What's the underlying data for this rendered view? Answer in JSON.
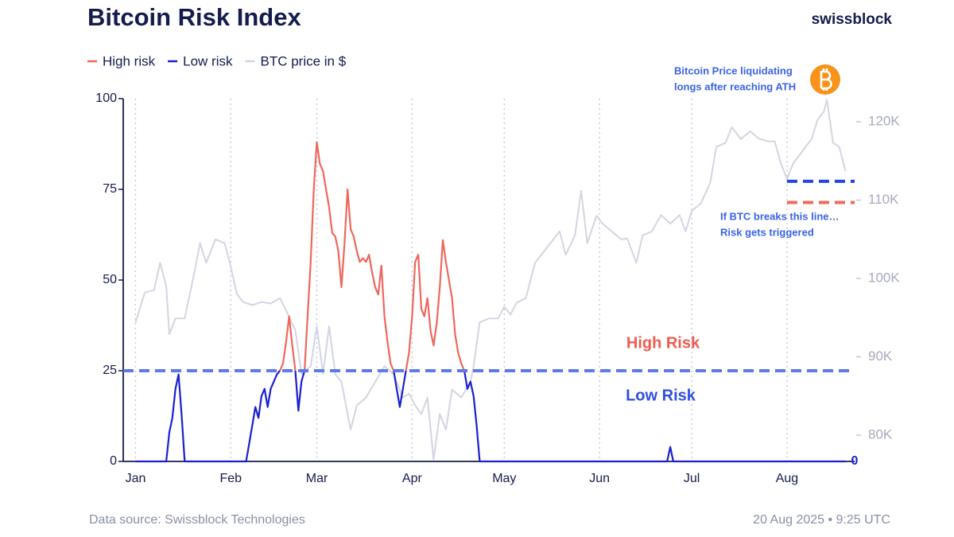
{
  "chart_data": {
    "type": "line",
    "title": "Bitcoin Risk Index",
    "brand": "swissblock",
    "source": "Data source: Swissblock Technologies",
    "timestamp": "20 Aug 2025 • 9:25 UTC",
    "xlim": [
      -4,
      234
    ],
    "xticks": [
      {
        "value": 0,
        "label": "Jan"
      },
      {
        "value": 31,
        "label": "Feb"
      },
      {
        "value": 59,
        "label": "Mar"
      },
      {
        "value": 90,
        "label": "Apr"
      },
      {
        "value": 120,
        "label": "May"
      },
      {
        "value": 151,
        "label": "Jun"
      },
      {
        "value": 181,
        "label": "Jul"
      },
      {
        "value": 212,
        "label": "Aug"
      }
    ],
    "xgrid": true,
    "ylim": [
      0,
      100
    ],
    "yticks": [
      0,
      25,
      50,
      75,
      100
    ],
    "y2lim": [
      76650,
      122950
    ],
    "y2ticks": [
      {
        "value": 80000,
        "label": "80K"
      },
      {
        "value": 90000,
        "label": "90K"
      },
      {
        "value": 100000,
        "label": "100K"
      },
      {
        "value": 110000,
        "label": "110K"
      },
      {
        "value": 120000,
        "label": "120K"
      }
    ],
    "x": [
      0,
      10,
      11,
      12,
      13,
      14,
      15,
      16,
      36,
      37,
      38,
      39,
      40,
      41,
      42,
      43,
      44,
      45,
      46,
      47,
      48,
      49,
      50,
      51,
      52,
      53,
      54,
      55,
      56,
      57,
      58,
      59,
      60,
      61,
      62,
      63,
      64,
      65,
      66,
      67,
      68,
      69,
      70,
      71,
      72,
      73,
      74,
      75,
      76,
      77,
      78,
      79,
      80,
      81,
      82,
      83,
      84,
      85,
      86,
      87,
      88,
      89,
      90,
      91,
      92,
      93,
      94,
      95,
      96,
      97,
      98,
      99,
      100,
      101,
      102,
      103,
      104,
      105,
      106,
      107,
      108,
      109,
      110,
      111,
      112,
      173,
      174,
      175,
      231
    ],
    "series": [
      {
        "name": "High risk",
        "color": "#f0665c",
        "values": [
          null,
          null,
          null,
          null,
          null,
          null,
          null,
          null,
          null,
          null,
          null,
          null,
          null,
          null,
          null,
          null,
          null,
          null,
          null,
          25,
          27,
          33,
          40,
          32,
          25,
          null,
          null,
          25,
          40,
          55,
          75,
          88,
          82,
          80,
          75,
          70,
          63,
          62,
          58,
          48,
          60,
          75,
          64,
          62,
          58,
          55,
          56,
          55,
          57,
          52,
          48,
          46,
          54,
          40,
          33,
          27,
          25,
          null,
          null,
          null,
          25,
          30,
          40,
          55,
          57,
          42,
          40,
          45,
          36,
          32,
          38,
          48,
          61,
          55,
          50,
          45,
          35,
          30,
          27,
          25,
          null,
          null,
          null,
          null,
          null,
          null,
          null,
          null,
          null
        ]
      },
      {
        "name": "Low risk",
        "color": "#1a1fd1",
        "values": [
          0,
          0,
          8,
          12,
          20,
          24,
          13,
          0,
          0,
          5,
          10,
          15,
          12,
          18,
          20,
          15,
          20,
          22,
          24,
          25,
          null,
          null,
          null,
          null,
          25,
          14,
          22,
          25,
          null,
          null,
          null,
          null,
          null,
          null,
          null,
          null,
          null,
          null,
          null,
          null,
          null,
          null,
          null,
          null,
          null,
          null,
          null,
          null,
          null,
          null,
          null,
          null,
          null,
          null,
          null,
          null,
          25,
          20,
          15,
          20,
          25,
          null,
          null,
          null,
          null,
          null,
          null,
          null,
          null,
          null,
          null,
          null,
          null,
          null,
          null,
          null,
          null,
          null,
          null,
          25,
          20,
          22,
          18,
          10,
          0,
          0,
          4,
          0,
          0
        ]
      },
      {
        "name": "BTC price in $",
        "color": "#d3d5e2",
        "axis": "y2",
        "x": [
          0,
          3,
          6,
          8,
          10,
          11,
          13,
          16,
          19,
          21,
          23,
          26,
          29,
          31,
          33,
          35,
          38,
          41,
          44,
          47,
          49,
          52,
          54,
          57,
          59,
          61,
          63,
          65,
          67,
          70,
          72,
          75,
          78,
          81,
          84,
          87,
          89,
          91,
          93,
          95,
          97,
          99,
          101,
          103,
          106,
          109,
          110,
          112,
          115,
          118,
          120,
          122,
          124,
          127,
          130,
          132,
          135,
          138,
          140,
          143,
          145,
          147,
          150,
          152,
          155,
          158,
          160,
          163,
          165,
          168,
          171,
          174,
          177,
          179,
          181,
          184,
          187,
          189,
          192,
          194,
          197,
          200,
          203,
          206,
          208,
          210,
          212,
          214,
          216,
          218,
          220,
          222,
          224,
          225,
          227,
          229,
          231
        ],
        "values": [
          94400,
          98200,
          98500,
          102000,
          99000,
          92900,
          94900,
          94900,
          100500,
          104500,
          102000,
          105000,
          104500,
          101500,
          98000,
          97000,
          96600,
          97000,
          96800,
          97500,
          95900,
          93400,
          87800,
          88800,
          93900,
          87800,
          93900,
          87800,
          86800,
          80700,
          83800,
          84800,
          86800,
          88800,
          87800,
          84800,
          85300,
          83800,
          82700,
          84800,
          76900,
          82700,
          80700,
          85800,
          84800,
          86800,
          88800,
          94400,
          94900,
          94900,
          96400,
          95400,
          96900,
          97500,
          102000,
          103000,
          104500,
          106000,
          103000,
          105500,
          111200,
          104500,
          108000,
          107000,
          106000,
          105000,
          105100,
          102000,
          105500,
          106000,
          108100,
          107000,
          108100,
          106000,
          108600,
          109600,
          112200,
          116800,
          117300,
          119300,
          117800,
          118800,
          117800,
          117500,
          117500,
          114700,
          112700,
          114700,
          115700,
          116800,
          117800,
          120300,
          121300,
          122800,
          117300,
          116800,
          113700
        ]
      }
    ],
    "reference_lines": [
      {
        "axis": "y",
        "value": 25,
        "color": "#5b7be8"
      },
      {
        "axis": "y2",
        "value": 112400,
        "color": "#2346e0",
        "xrange": [
          212,
          234
        ]
      },
      {
        "axis": "y2",
        "value": 109700,
        "color": "#f06a5a",
        "xrange": [
          212,
          234
        ]
      }
    ],
    "annotations": [
      {
        "text": "High Risk",
        "color": "#ef5b4f"
      },
      {
        "text": "Low Risk",
        "color": "#2f4fe0"
      },
      {
        "lines": [
          "Bitcoin Price liquidating",
          "longs after reaching ATH"
        ],
        "color": "#3a63e6"
      },
      {
        "lines": [
          "If BTC breaks this line…",
          "Risk gets triggered"
        ],
        "color": "#3a63e6"
      },
      {
        "text": "0",
        "value": 0,
        "color": "#1a1fd1"
      }
    ]
  }
}
